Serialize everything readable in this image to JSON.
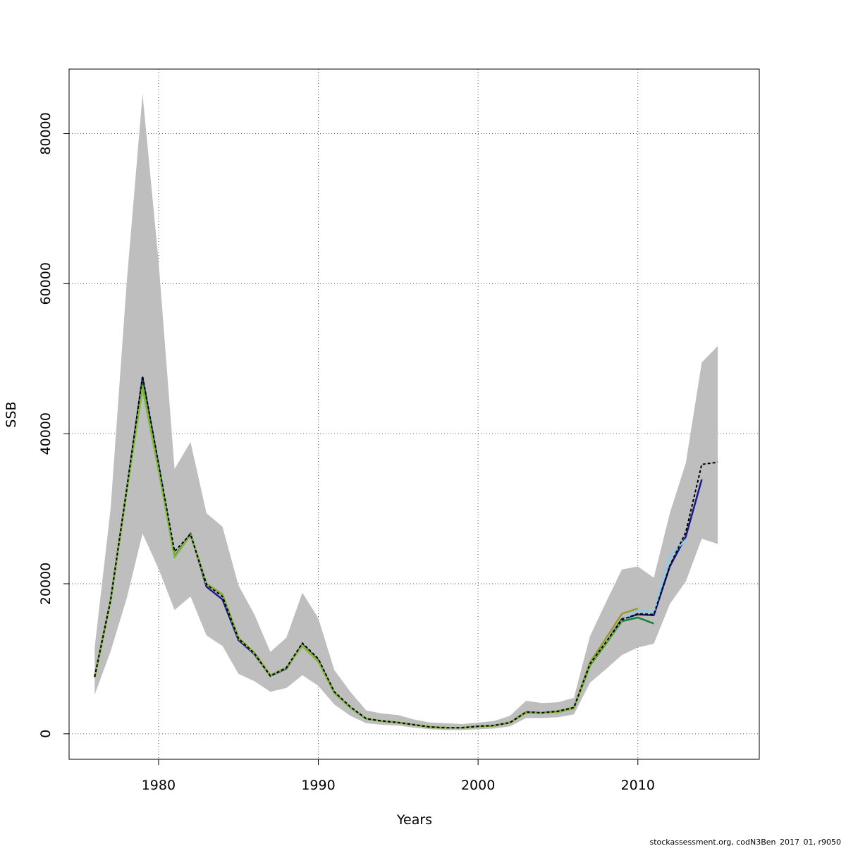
{
  "chart_data": {
    "type": "line",
    "xlabel": "Years",
    "ylabel": "SSB",
    "xlim": [
      1974.4,
      2017.6
    ],
    "ylim": [
      -3400,
      88600
    ],
    "x_ticks": [
      1980,
      1990,
      2000,
      2010
    ],
    "y_ticks": [
      0,
      20000,
      40000,
      60000,
      80000
    ],
    "grid": true,
    "band": {
      "years": [
        1976,
        1977,
        1978,
        1979,
        1980,
        1981,
        1982,
        1983,
        1984,
        1985,
        1986,
        1987,
        1988,
        1989,
        1990,
        1991,
        1992,
        1993,
        1994,
        1995,
        1996,
        1997,
        1998,
        1999,
        2000,
        2001,
        2002,
        2003,
        2004,
        2005,
        2006,
        2007,
        2008,
        2009,
        2010,
        2011,
        2012,
        2013,
        2014,
        2015
      ],
      "lower": [
        5200,
        11000,
        18000,
        26700,
        22000,
        16500,
        18300,
        13100,
        11700,
        8000,
        7000,
        5600,
        6100,
        7800,
        6400,
        3900,
        2400,
        1400,
        1200,
        1100,
        800,
        600,
        500,
        500,
        600,
        700,
        1000,
        2100,
        2100,
        2200,
        2600,
        6800,
        8600,
        10500,
        11500,
        12000,
        17300,
        20300,
        26000,
        25300
      ],
      "upper": [
        11500,
        30000,
        60000,
        85300,
        63000,
        35300,
        38900,
        29400,
        27600,
        19800,
        15900,
        10900,
        12800,
        18800,
        15400,
        8500,
        5600,
        3100,
        2700,
        2500,
        1900,
        1500,
        1400,
        1300,
        1500,
        1700,
        2400,
        4400,
        4100,
        4200,
        4800,
        13000,
        17500,
        21900,
        22300,
        20800,
        29400,
        36100,
        49500,
        51700
      ]
    },
    "series": [
      {
        "name": "",
        "color": "#000000",
        "dashed": true,
        "years": [
          1976,
          1977,
          1978,
          1979,
          1980,
          1981,
          1982,
          1983,
          1984,
          1985,
          1986,
          1987,
          1988,
          1989,
          1990,
          1991,
          1992,
          1993,
          1994,
          1995,
          1996,
          1997,
          1998,
          1999,
          2000,
          2001,
          2002,
          2003,
          2004,
          2005,
          2006,
          2007,
          2008,
          2009,
          2010,
          2011,
          2012,
          2013,
          2014,
          2015
        ],
        "values": [
          7600,
          17800,
          32500,
          47700,
          36000,
          24300,
          26600,
          19900,
          18300,
          12700,
          10700,
          7700,
          8800,
          12100,
          10000,
          5600,
          3600,
          2000,
          1700,
          1500,
          1200,
          900,
          800,
          800,
          1000,
          1100,
          1500,
          2900,
          2800,
          3000,
          3500,
          9300,
          12200,
          15200,
          16000,
          15900,
          22400,
          26900,
          35900,
          36200
        ]
      },
      {
        "name": "",
        "color": "#1a1a8c",
        "dashed": false,
        "years": [
          1976,
          1977,
          1978,
          1979,
          1980,
          1981,
          1982,
          1983,
          1984,
          1985,
          1986,
          1987,
          1988,
          1989,
          1990,
          1991,
          1992,
          1993,
          1994,
          1995,
          1996,
          1997,
          1998,
          1999,
          2000,
          2001,
          2002,
          2003,
          2004,
          2005,
          2006,
          2007,
          2008,
          2009,
          2010,
          2011,
          2012,
          2013,
          2014
        ],
        "values": [
          7600,
          17800,
          32400,
          47400,
          35800,
          23600,
          26700,
          19600,
          17900,
          12500,
          10600,
          7700,
          8700,
          11900,
          9800,
          5500,
          3500,
          2000,
          1700,
          1500,
          1200,
          900,
          800,
          800,
          1000,
          1100,
          1500,
          2900,
          2800,
          3000,
          3500,
          9300,
          12100,
          15300,
          15900,
          15800,
          22300,
          26300,
          33900
        ]
      },
      {
        "name": "",
        "color": "#87ceeb",
        "dashed": false,
        "years": [
          2009,
          2010,
          2011,
          2012,
          2013
        ],
        "values": [
          15100,
          16500,
          16200,
          23600,
          25900
        ]
      },
      {
        "name": "",
        "color": "#1a7f3c",
        "dashed": false,
        "years": [
          1976,
          1977,
          1978,
          1979,
          1980,
          1981,
          1982,
          1983,
          1984,
          1985,
          1986,
          1987,
          1988,
          1989,
          1990,
          1991,
          1992,
          1993,
          1994,
          1995,
          1996,
          1997,
          1998,
          1999,
          2000,
          2001,
          2002,
          2003,
          2004,
          2005,
          2006,
          2007,
          2008,
          2009,
          2010,
          2011
        ],
        "values": [
          7600,
          17800,
          32400,
          46800,
          35500,
          23600,
          26600,
          20000,
          18500,
          12800,
          10700,
          7800,
          8800,
          11800,
          9700,
          5500,
          3500,
          2000,
          1700,
          1500,
          1200,
          900,
          800,
          800,
          1000,
          1100,
          1500,
          2800,
          2800,
          2900,
          3400,
          9100,
          12000,
          15000,
          15500,
          14700
        ]
      },
      {
        "name": "",
        "color": "#9a9a2a",
        "dashed": false,
        "years": [
          1976,
          1977,
          1978,
          1979,
          1980,
          1981,
          1982,
          1983,
          1984,
          1985,
          1986,
          1987,
          1988,
          1989,
          1990,
          1991,
          1992,
          1993,
          1994,
          1995,
          1996,
          1997,
          1998,
          1999,
          2000,
          2001,
          2002,
          2003,
          2004,
          2005,
          2006,
          2007,
          2008,
          2009,
          2010
        ],
        "values": [
          7600,
          17800,
          32300,
          46300,
          35300,
          23500,
          26500,
          20000,
          18600,
          12800,
          10800,
          7800,
          8800,
          11800,
          9700,
          5500,
          3500,
          2000,
          1700,
          1500,
          1200,
          900,
          800,
          800,
          1000,
          1100,
          1500,
          2900,
          2800,
          3000,
          3500,
          9500,
          12700,
          16000,
          16700
        ]
      },
      {
        "name": "",
        "color": "#7dbb3a",
        "dashed": false,
        "years": [
          1976,
          1977,
          1978,
          1979,
          1980,
          1981,
          1982,
          1983,
          1984,
          1985,
          1986,
          1987,
          1988,
          1989,
          1990,
          1991,
          1992,
          1993,
          1994,
          1995,
          1996,
          1997,
          1998,
          1999,
          2000,
          2001,
          2002,
          2003,
          2004,
          2005,
          2006,
          2007,
          2008,
          2009
        ],
        "values": [
          7500,
          17700,
          32200,
          46000,
          35100,
          23500,
          26600,
          19900,
          18500,
          12700,
          10700,
          7700,
          8800,
          11700,
          9600,
          5400,
          3500,
          2000,
          1700,
          1500,
          1200,
          900,
          800,
          800,
          1000,
          1100,
          1500,
          2800,
          2800,
          2900,
          3400,
          9200,
          12100,
          15100
        ]
      }
    ]
  },
  "footer": "stockassessment.org, codN3Ben_2017_01, r9050"
}
